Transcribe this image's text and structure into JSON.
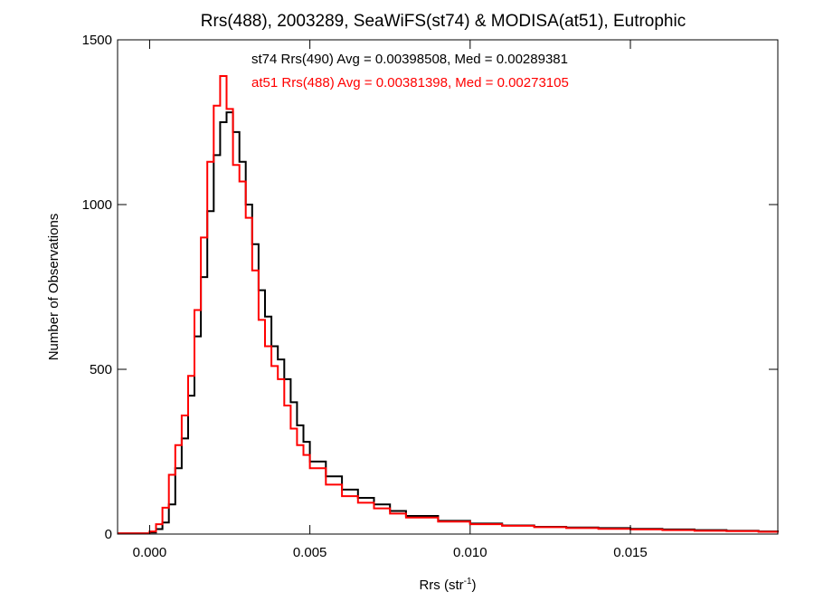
{
  "chart_data": {
    "type": "line",
    "title": "Rrs(488), 2003289, SeaWiFS(st74) & MODISA(at51), Eutrophic",
    "xlabel": "Rrs (str",
    "xlabel_superscript": "-1",
    "xlabel_suffix": ")",
    "ylabel": "Number of Observations",
    "xlim": [
      -0.001,
      0.0196
    ],
    "ylim": [
      0,
      1500
    ],
    "xticks": [
      {
        "value": 0.0,
        "label": "0.000"
      },
      {
        "value": 0.005,
        "label": "0.005"
      },
      {
        "value": 0.01,
        "label": "0.010"
      },
      {
        "value": 0.015,
        "label": "0.015"
      }
    ],
    "yticks": [
      {
        "value": 0,
        "label": "0"
      },
      {
        "value": 500,
        "label": "500"
      },
      {
        "value": 1000,
        "label": "1000"
      },
      {
        "value": 1500,
        "label": "1500"
      }
    ],
    "grid": false,
    "legend_position": "top-center",
    "series": [
      {
        "name": "st74",
        "legend_label": "st74 Rrs(490) Avg = 0.00398508, Med = 0.00289381",
        "color": "#000000",
        "points": [
          [
            -0.001,
            2
          ],
          [
            0.0,
            5
          ],
          [
            0.0002,
            15
          ],
          [
            0.0004,
            35
          ],
          [
            0.0006,
            90
          ],
          [
            0.0008,
            200
          ],
          [
            0.001,
            290
          ],
          [
            0.0012,
            420
          ],
          [
            0.0014,
            600
          ],
          [
            0.0016,
            780
          ],
          [
            0.0018,
            980
          ],
          [
            0.002,
            1150
          ],
          [
            0.0022,
            1250
          ],
          [
            0.0024,
            1280
          ],
          [
            0.0026,
            1220
          ],
          [
            0.0028,
            1130
          ],
          [
            0.003,
            1000
          ],
          [
            0.0032,
            880
          ],
          [
            0.0034,
            740
          ],
          [
            0.0036,
            660
          ],
          [
            0.0038,
            570
          ],
          [
            0.004,
            530
          ],
          [
            0.0042,
            470
          ],
          [
            0.0044,
            400
          ],
          [
            0.0046,
            330
          ],
          [
            0.0048,
            280
          ],
          [
            0.005,
            220
          ],
          [
            0.0055,
            175
          ],
          [
            0.006,
            135
          ],
          [
            0.0065,
            110
          ],
          [
            0.007,
            90
          ],
          [
            0.0075,
            70
          ],
          [
            0.008,
            55
          ],
          [
            0.009,
            40
          ],
          [
            0.01,
            32
          ],
          [
            0.011,
            26
          ],
          [
            0.012,
            22
          ],
          [
            0.013,
            20
          ],
          [
            0.014,
            18
          ],
          [
            0.015,
            16
          ],
          [
            0.016,
            14
          ],
          [
            0.017,
            12
          ],
          [
            0.018,
            10
          ],
          [
            0.019,
            8
          ],
          [
            0.0196,
            6
          ]
        ]
      },
      {
        "name": "at51",
        "legend_label": "at51 Rrs(488) Avg = 0.00381398, Med = 0.00273105",
        "color": "#ff0000",
        "points": [
          [
            -0.001,
            2
          ],
          [
            0.0,
            8
          ],
          [
            0.0002,
            30
          ],
          [
            0.0004,
            80
          ],
          [
            0.0006,
            180
          ],
          [
            0.0008,
            270
          ],
          [
            0.001,
            360
          ],
          [
            0.0012,
            480
          ],
          [
            0.0014,
            680
          ],
          [
            0.0016,
            900
          ],
          [
            0.0018,
            1130
          ],
          [
            0.002,
            1300
          ],
          [
            0.0022,
            1390
          ],
          [
            0.0024,
            1290
          ],
          [
            0.0026,
            1120
          ],
          [
            0.0028,
            1070
          ],
          [
            0.003,
            960
          ],
          [
            0.0032,
            800
          ],
          [
            0.0034,
            650
          ],
          [
            0.0036,
            570
          ],
          [
            0.0038,
            510
          ],
          [
            0.004,
            470
          ],
          [
            0.0042,
            390
          ],
          [
            0.0044,
            320
          ],
          [
            0.0046,
            270
          ],
          [
            0.0048,
            240
          ],
          [
            0.005,
            200
          ],
          [
            0.0055,
            150
          ],
          [
            0.006,
            115
          ],
          [
            0.0065,
            95
          ],
          [
            0.007,
            78
          ],
          [
            0.0075,
            62
          ],
          [
            0.008,
            50
          ],
          [
            0.009,
            38
          ],
          [
            0.01,
            30
          ],
          [
            0.011,
            25
          ],
          [
            0.012,
            21
          ],
          [
            0.013,
            18
          ],
          [
            0.014,
            16
          ],
          [
            0.015,
            14
          ],
          [
            0.016,
            12
          ],
          [
            0.017,
            10
          ],
          [
            0.018,
            9
          ],
          [
            0.019,
            7
          ],
          [
            0.0196,
            5
          ]
        ]
      }
    ]
  }
}
